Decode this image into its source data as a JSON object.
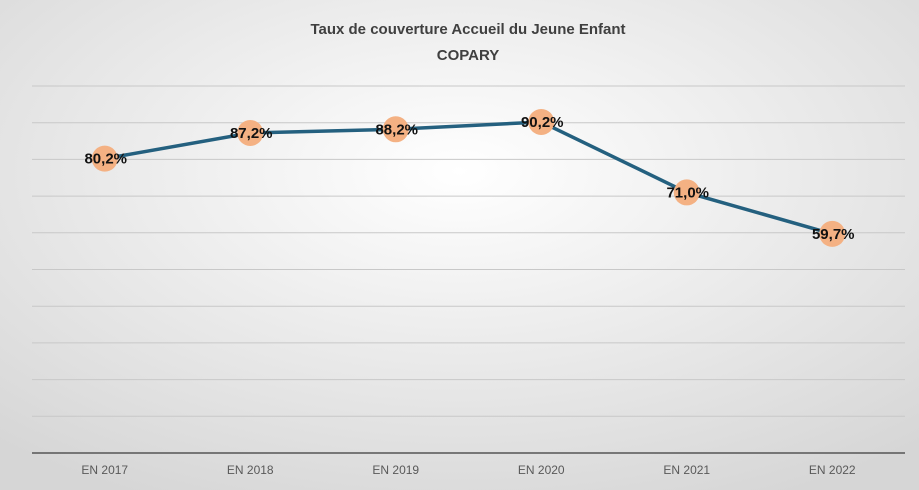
{
  "chart_data": {
    "type": "line",
    "title": "Taux de couverture Accueil du Jeune Enfant",
    "subtitle": "COPARY",
    "categories": [
      "EN 2017",
      "EN 2018",
      "EN 2019",
      "EN 2020",
      "EN 2021",
      "EN 2022"
    ],
    "series": [
      {
        "name": "Taux de couverture",
        "color": "#24607f",
        "marker_color": "#f4b183",
        "values": [
          80.2,
          87.2,
          88.2,
          90.2,
          71.0,
          59.7
        ],
        "value_labels": [
          "80,2%",
          "87,2%",
          "88,2%",
          "90,2%",
          "71,0%",
          "59,7%"
        ]
      }
    ],
    "ylim": [
      0,
      100
    ],
    "yticks": [
      0,
      10,
      20,
      30,
      40,
      50,
      60,
      70,
      80,
      90,
      100
    ],
    "grid": true
  }
}
